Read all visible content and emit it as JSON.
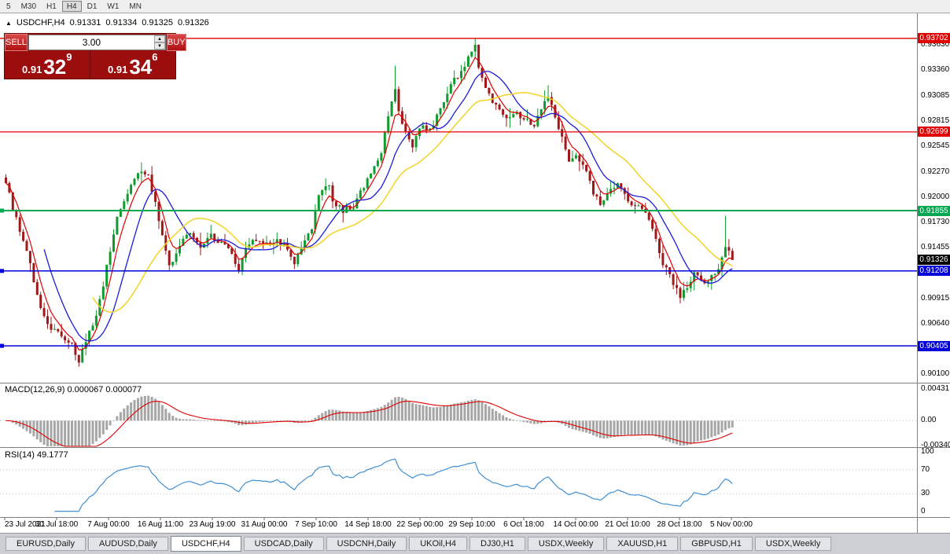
{
  "toolbar": {
    "items": [
      "5",
      "M30",
      "H1",
      "H4",
      "D1",
      "W1",
      "MN"
    ],
    "active_index": 3
  },
  "chart_header": {
    "collapse_icon": "▲",
    "symbol": "USDCHF,H4",
    "open": "0.91331",
    "high": "0.91334",
    "low": "0.91325",
    "close": "0.91326"
  },
  "trade_panel": {
    "sell_label": "SELL",
    "buy_label": "BUY",
    "volume": "3.00",
    "sell_price": {
      "prefix": "0.91",
      "big": "32",
      "pip": "9"
    },
    "buy_price": {
      "prefix": "0.91",
      "big": "34",
      "pip": "6"
    }
  },
  "indicators": {
    "macd_label": "MACD(12,26,9) 0.000067 0.000077",
    "rsi_label": "RSI(14) 49.1777"
  },
  "axes": {
    "price_ticks": [
      "0.93630",
      "0.93360",
      "0.93085",
      "0.92815",
      "0.92545",
      "0.92270",
      "0.92000",
      "0.91730",
      "0.91455",
      "0.91185",
      "0.90915",
      "0.90640",
      "0.90370",
      "0.90100"
    ],
    "macd_ticks": [
      {
        "label": "0.00431",
        "value": 0.00431
      },
      {
        "label": "0.00",
        "value": 0
      },
      {
        "label": "-0.00340",
        "value": -0.0034
      }
    ],
    "rsi_ticks": [
      {
        "label": "100",
        "value": 100
      },
      {
        "label": "70",
        "value": 70
      },
      {
        "label": "30",
        "value": 30
      },
      {
        "label": "0",
        "value": 0
      }
    ],
    "time_labels": [
      "23 Jul 2021",
      "30 Jul 18:00",
      "7 Aug 00:00",
      "16 Aug 11:00",
      "23 Aug 19:00",
      "31 Aug 00:00",
      "7 Sep 10:00",
      "14 Sep 18:00",
      "22 Sep 00:00",
      "29 Sep 10:00",
      "6 Oct 18:00",
      "14 Oct 00:00",
      "21 Oct 10:00",
      "28 Oct 18:00",
      "5 Nov 00:00"
    ]
  },
  "chart_data": {
    "type": "candlestick",
    "title": "USDCHF,H4",
    "symbol": "USDCHF",
    "timeframe": "H4",
    "bar_count": 210,
    "price_range": [
      0.9001,
      0.9397
    ],
    "last_close": 0.91326,
    "up_color": "#0f9b2e",
    "down_color": "#9e1a1a",
    "waypoints": [
      [
        0,
        0.9215
      ],
      [
        2,
        0.9188
      ],
      [
        4,
        0.9165
      ],
      [
        6,
        0.9142
      ],
      [
        9,
        0.9095
      ],
      [
        12,
        0.9063
      ],
      [
        16,
        0.9052
      ],
      [
        19,
        0.9042
      ],
      [
        21,
        0.9026
      ],
      [
        23,
        0.9047
      ],
      [
        25,
        0.9062
      ],
      [
        27,
        0.9088
      ],
      [
        30,
        0.9142
      ],
      [
        32,
        0.9178
      ],
      [
        34,
        0.9198
      ],
      [
        36,
        0.9215
      ],
      [
        39,
        0.923
      ],
      [
        41,
        0.9222
      ],
      [
        43,
        0.9196
      ],
      [
        45,
        0.9156
      ],
      [
        47,
        0.9128
      ],
      [
        49,
        0.914
      ],
      [
        51,
        0.9156
      ],
      [
        53,
        0.9164
      ],
      [
        56,
        0.9148
      ],
      [
        59,
        0.9159
      ],
      [
        62,
        0.9151
      ],
      [
        65,
        0.9138
      ],
      [
        67,
        0.9121
      ],
      [
        69,
        0.9147
      ],
      [
        72,
        0.9154
      ],
      [
        75,
        0.9149
      ],
      [
        78,
        0.9154
      ],
      [
        80,
        0.9147
      ],
      [
        83,
        0.913
      ],
      [
        86,
        0.9151
      ],
      [
        88,
        0.9166
      ],
      [
        90,
        0.9203
      ],
      [
        93,
        0.9216
      ],
      [
        94,
        0.9196
      ],
      [
        97,
        0.9186
      ],
      [
        100,
        0.9191
      ],
      [
        102,
        0.9204
      ],
      [
        105,
        0.9226
      ],
      [
        108,
        0.925
      ],
      [
        110,
        0.9288
      ],
      [
        112,
        0.9318
      ],
      [
        113,
        0.9295
      ],
      [
        115,
        0.9268
      ],
      [
        117,
        0.9256
      ],
      [
        119,
        0.9276
      ],
      [
        122,
        0.9271
      ],
      [
        124,
        0.9286
      ],
      [
        126,
        0.9303
      ],
      [
        128,
        0.932
      ],
      [
        131,
        0.9334
      ],
      [
        133,
        0.935
      ],
      [
        135,
        0.9363
      ],
      [
        136,
        0.934
      ],
      [
        138,
        0.9316
      ],
      [
        140,
        0.9303
      ],
      [
        143,
        0.9288
      ],
      [
        145,
        0.9283
      ],
      [
        147,
        0.9288
      ],
      [
        149,
        0.9282
      ],
      [
        152,
        0.9278
      ],
      [
        154,
        0.9294
      ],
      [
        156,
        0.9307
      ],
      [
        158,
        0.9288
      ],
      [
        160,
        0.9262
      ],
      [
        162,
        0.9236
      ],
      [
        164,
        0.9243
      ],
      [
        167,
        0.9226
      ],
      [
        169,
        0.9206
      ],
      [
        171,
        0.9189
      ],
      [
        173,
        0.9203
      ],
      [
        176,
        0.9214
      ],
      [
        178,
        0.9201
      ],
      [
        180,
        0.9193
      ],
      [
        183,
        0.9187
      ],
      [
        185,
        0.9178
      ],
      [
        187,
        0.9156
      ],
      [
        189,
        0.9129
      ],
      [
        192,
        0.9108
      ],
      [
        194,
        0.9093
      ],
      [
        196,
        0.9104
      ],
      [
        198,
        0.9117
      ],
      [
        200,
        0.9109
      ],
      [
        203,
        0.9115
      ],
      [
        205,
        0.9121
      ],
      [
        207,
        0.9148
      ],
      [
        208,
        0.914
      ],
      [
        209,
        0.91326
      ]
    ],
    "wick_overrides": [
      {
        "i": 21,
        "l": 0.9018
      },
      {
        "i": 112,
        "h": 0.9341
      },
      {
        "i": 135,
        "h": 0.93702
      },
      {
        "i": 156,
        "h": 0.932
      },
      {
        "i": 194,
        "l": 0.9086
      },
      {
        "i": 207,
        "h": 0.918
      }
    ],
    "moving_averages": [
      {
        "type": "ema",
        "period": 5,
        "color": "#e00000",
        "width": 1.2
      },
      {
        "type": "sma",
        "period": 12,
        "color": "#1c1cd8",
        "width": 1.3
      },
      {
        "type": "sma",
        "period": 26,
        "color": "#f2d327",
        "width": 1.5
      }
    ],
    "levels": [
      {
        "price": 0.93702,
        "label": "0.93702",
        "color": "#e00000",
        "width": 1.3,
        "anchor": false
      },
      {
        "price": 0.92699,
        "label": "0.92699",
        "color": "#e00000",
        "width": 1.3,
        "anchor": false
      },
      {
        "price": 0.91855,
        "label": "0.91855",
        "color": "#00a94f",
        "width": 2,
        "anchor": true
      },
      {
        "price": 0.91208,
        "label": "0.91208",
        "color": "#0000dd",
        "width": 1.5,
        "anchor": true
      },
      {
        "price": 0.90405,
        "label": "0.90405",
        "color": "#0000dd",
        "width": 1.5,
        "anchor": true
      }
    ],
    "current_price": {
      "value": 0.91326,
      "label": "0.91326",
      "color": "#000000"
    },
    "macd": {
      "params": "12,26,9",
      "values": [
        6.7e-05,
        7.7e-05
      ],
      "histogram_color": "#a6a6a6",
      "signal_color": "#e00000",
      "axis": [
        0.00431,
        0,
        -0.0034
      ]
    },
    "rsi": {
      "period": 14,
      "value": 49.1777,
      "color": "#3f8fd2",
      "levels": [
        70,
        30
      ]
    }
  },
  "tabs": {
    "items": [
      "EURUSD,Daily",
      "AUDUSD,Daily",
      "USDCHF,H4",
      "USDCAD,Daily",
      "USDCNH,Daily",
      "UKOil,H4",
      "DJ30,H1",
      "USDX,Weekly",
      "XAUUSD,H1",
      "GBPUSD,H1",
      "USDX,Weekly"
    ],
    "active_index": 2
  }
}
